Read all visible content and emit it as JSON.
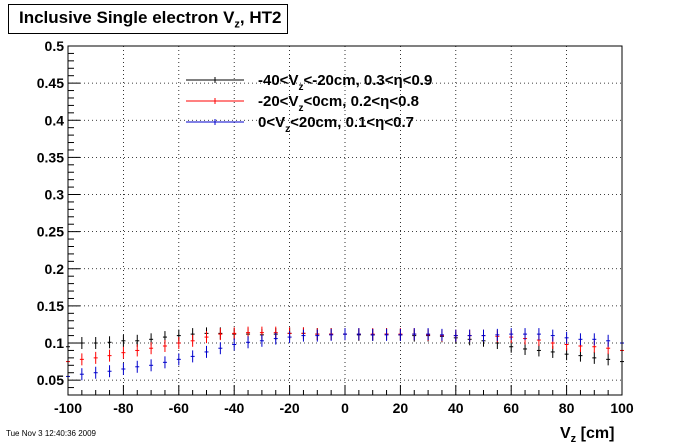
{
  "title": {
    "text": "Inclusive Single electron V",
    "sub": "z",
    "suffix": ", HT2"
  },
  "timestamp": "Tue Nov  3 12:40:36 2009",
  "chart_data": {
    "type": "scatter",
    "title": "Inclusive Single electron V_z, HT2",
    "xlabel": "V_z [cm]",
    "ylabel": "",
    "xlim": [
      -100,
      100
    ],
    "ylim": [
      0.03,
      0.5
    ],
    "grid": true,
    "legend_position": "top-center",
    "x_ticks": [
      "-100",
      "-80",
      "-60",
      "-40",
      "-20",
      "0",
      "20",
      "40",
      "60",
      "80",
      "100"
    ],
    "y_ticks": [
      "0.05",
      "0.1",
      "0.15",
      "0.2",
      "0.25",
      "0.3",
      "0.35",
      "0.4",
      "0.45",
      "0.5"
    ],
    "series": [
      {
        "legend": {
          "pre": "-40<V",
          "sub": "z",
          "post": "<-20cm, 0.3<η<0.9"
        },
        "color": "#000000",
        "x": [
          -100,
          -95,
          -90,
          -85,
          -80,
          -75,
          -70,
          -65,
          -60,
          -55,
          -50,
          -45,
          -40,
          -35,
          -30,
          -25,
          -20,
          -15,
          -10,
          -5,
          0,
          5,
          10,
          15,
          20,
          25,
          30,
          35,
          40,
          45,
          50,
          55,
          60,
          65,
          70,
          75,
          80,
          85,
          90,
          95,
          100
        ],
        "y": [
          0.095,
          0.1,
          0.1,
          0.101,
          0.103,
          0.103,
          0.105,
          0.108,
          0.11,
          0.112,
          0.113,
          0.113,
          0.112,
          0.112,
          0.111,
          0.112,
          0.113,
          0.113,
          0.112,
          0.112,
          0.112,
          0.111,
          0.111,
          0.112,
          0.111,
          0.11,
          0.11,
          0.109,
          0.107,
          0.105,
          0.103,
          0.1,
          0.095,
          0.092,
          0.09,
          0.088,
          0.085,
          0.083,
          0.08,
          0.078,
          0.075
        ]
      },
      {
        "legend": {
          "pre": "-20<V",
          "sub": "z",
          "post": "<0cm, 0.2<η<0.8"
        },
        "color": "#ff0000",
        "x": [
          -100,
          -95,
          -90,
          -85,
          -80,
          -75,
          -70,
          -65,
          -60,
          -55,
          -50,
          -45,
          -40,
          -35,
          -30,
          -25,
          -20,
          -15,
          -10,
          -5,
          0,
          5,
          10,
          15,
          20,
          25,
          30,
          35,
          40,
          45,
          50,
          55,
          60,
          65,
          70,
          75,
          80,
          85,
          90,
          95,
          100
        ],
        "y": [
          0.075,
          0.078,
          0.08,
          0.083,
          0.087,
          0.09,
          0.093,
          0.096,
          0.1,
          0.103,
          0.108,
          0.112,
          0.113,
          0.114,
          0.114,
          0.114,
          0.113,
          0.113,
          0.112,
          0.112,
          0.112,
          0.112,
          0.112,
          0.112,
          0.112,
          0.112,
          0.111,
          0.11,
          0.11,
          0.11,
          0.11,
          0.109,
          0.108,
          0.106,
          0.104,
          0.1,
          0.098,
          0.096,
          0.095,
          0.093,
          0.09
        ]
      },
      {
        "legend": {
          "pre": "0<V",
          "sub": "z",
          "post": "<20cm, 0.1<η<0.7"
        },
        "color": "#0000cc",
        "x": [
          -100,
          -95,
          -90,
          -85,
          -80,
          -75,
          -70,
          -65,
          -60,
          -55,
          -50,
          -45,
          -40,
          -35,
          -30,
          -25,
          -20,
          -15,
          -10,
          -5,
          0,
          5,
          10,
          15,
          20,
          25,
          30,
          35,
          40,
          45,
          50,
          55,
          60,
          65,
          70,
          75,
          80,
          85,
          90,
          95,
          100
        ],
        "y": [
          0.055,
          0.058,
          0.06,
          0.062,
          0.065,
          0.068,
          0.07,
          0.074,
          0.078,
          0.082,
          0.088,
          0.093,
          0.098,
          0.101,
          0.103,
          0.106,
          0.108,
          0.11,
          0.11,
          0.111,
          0.112,
          0.112,
          0.111,
          0.111,
          0.111,
          0.112,
          0.112,
          0.111,
          0.11,
          0.11,
          0.11,
          0.111,
          0.112,
          0.112,
          0.112,
          0.11,
          0.107,
          0.105,
          0.105,
          0.103,
          0.1
        ]
      }
    ]
  }
}
